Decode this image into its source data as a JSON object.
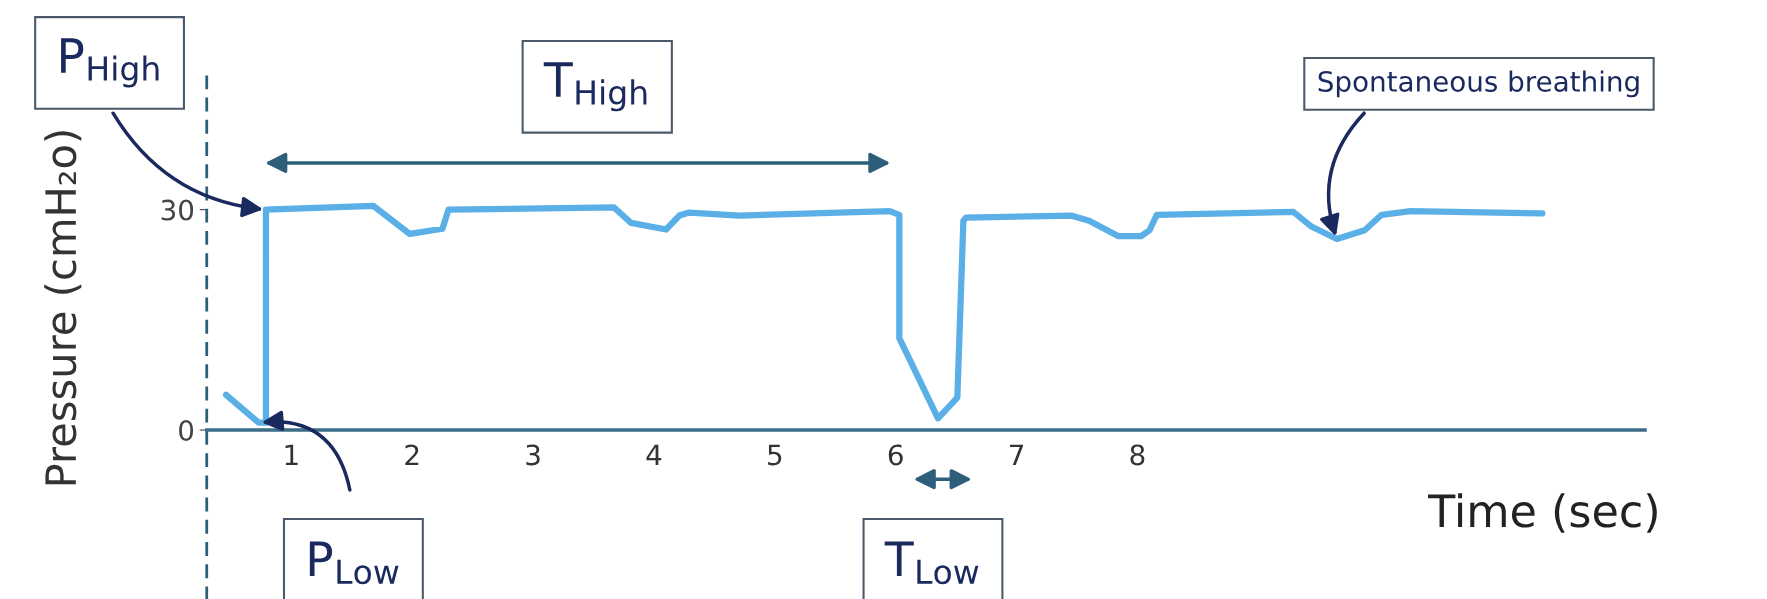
{
  "chart_data": {
    "type": "line",
    "xlabel": "Time (sec)",
    "ylabel": "Pressure (cmH₂o)",
    "x": [
      0.46,
      0.73,
      0.79,
      0.79,
      1.68,
      1.98,
      2.25,
      2.3,
      3.67,
      3.81,
      4.1,
      4.21,
      4.29,
      4.71,
      5.95,
      6.03,
      6.03,
      6.35,
      6.51,
      6.56,
      6.58,
      7.45,
      7.6,
      7.84,
      8.03,
      8.1,
      8.16,
      9.29,
      9.44,
      9.65,
      9.88,
      10.02,
      10.26,
      11.35
    ],
    "series": [
      {
        "color": "#5aafe6",
        "values": [
          4.8,
          1,
          1,
          30,
          30.5,
          26.7,
          27.4,
          30,
          30.3,
          28.2,
          27.3,
          29.2,
          29.6,
          29.2,
          29.8,
          29.3,
          12.5,
          1.6,
          4.4,
          28.5,
          28.9,
          29.2,
          28.5,
          26.4,
          26.4,
          27.2,
          29.3,
          29.7,
          27.7,
          26,
          27.2,
          29.3,
          29.8,
          29.5
        ]
      }
    ],
    "xlim": [
      0.3,
      12.2
    ],
    "ylim": [
      -23,
      49
    ],
    "xticks": [
      1,
      2,
      3,
      4,
      5,
      6,
      7,
      8
    ],
    "yticks": [
      0,
      30
    ],
    "grid": false,
    "legend": false,
    "marker": "none",
    "line_style": "solid",
    "annotations": [
      {
        "text": "P$_{High}$",
        "x": 0.79,
        "y": 30
      },
      "T$_{High}$",
      {
        "text": "P$_{Low}$",
        "x": 0.73,
        "y": 1
      },
      "T$_{Low}$",
      {
        "text": "Spontaneous breathing",
        "x": 9.65,
        "y": 26
      }
    ]
  }
}
